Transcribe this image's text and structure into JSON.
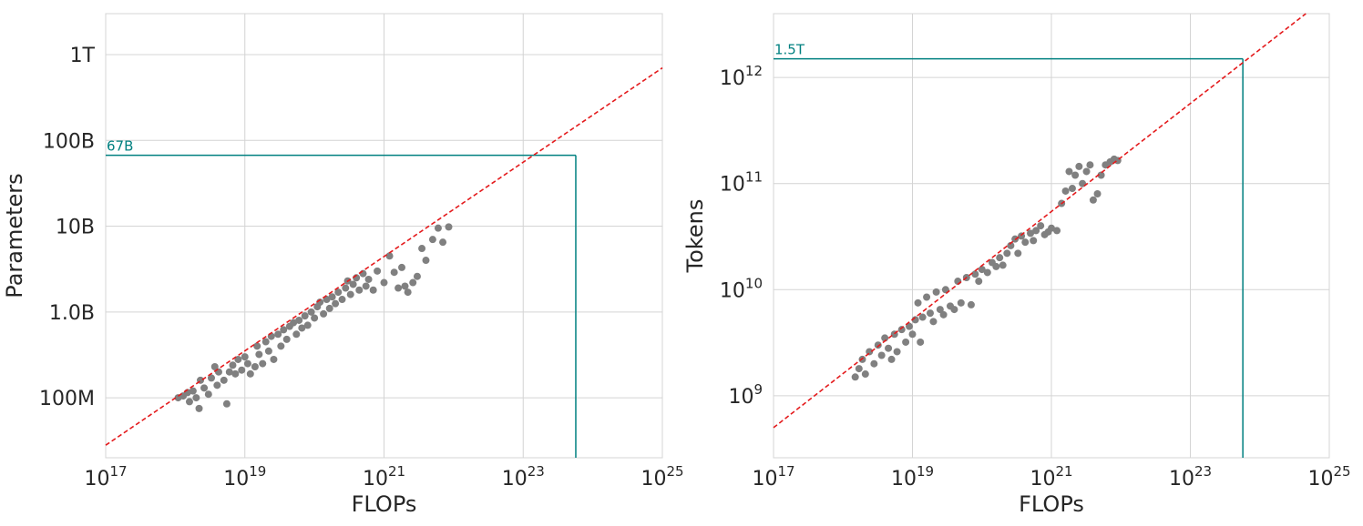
{
  "colors": {
    "points": "#808080",
    "fit": "#e41a1c",
    "marker": "#008080",
    "grid": "#d4d4d4",
    "text": "#262626"
  },
  "chart_data": [
    {
      "type": "scatter",
      "xlabel": "FLOPs",
      "ylabel": "Parameters",
      "xscale": "log",
      "yscale": "log",
      "xlim": [
        1e+17,
        1e+25
      ],
      "ylim": [
        20000000.0,
        3000000000000.0
      ],
      "x_ticks": [
        {
          "value": 1e+17,
          "base": "10",
          "exp": "17"
        },
        {
          "value": 1e+19,
          "base": "10",
          "exp": "19"
        },
        {
          "value": 1e+21,
          "base": "10",
          "exp": "21"
        },
        {
          "value": 1e+23,
          "base": "10",
          "exp": "23"
        },
        {
          "value": 1e+25,
          "base": "10",
          "exp": "25"
        }
      ],
      "y_ticks": [
        {
          "value": 100000000.0,
          "label": "100M"
        },
        {
          "value": 1000000000.0,
          "label": "1.0B"
        },
        {
          "value": 10000000000.0,
          "label": "10B"
        },
        {
          "value": 100000000000.0,
          "label": "100B"
        },
        {
          "value": 1000000000000.0,
          "label": "1T"
        }
      ],
      "fit_line": {
        "x": [
          1e+17,
          1e+25
        ],
        "y": [
          28000000.0,
          700000000000.0
        ],
        "style": "dashed"
      },
      "annotation": {
        "x": 5.7e+23,
        "y": 67000000000.0,
        "label": "67B"
      },
      "points_x_range": [
        1e+18,
        1e+22
      ],
      "points_y_range": [
        75000000.0,
        10000000000.0
      ],
      "points": [
        [
          1.1e+18,
          100000000.0
        ],
        [
          1.3e+18,
          105000000.0
        ],
        [
          1.5e+18,
          115000000.0
        ],
        [
          1.6e+18,
          90000000.0
        ],
        [
          1.8e+18,
          120000000.0
        ],
        [
          2e+18,
          100000000.0
        ],
        [
          2.2e+18,
          75000000.0
        ],
        [
          2.3e+18,
          160000000.0
        ],
        [
          2.6e+18,
          130000000.0
        ],
        [
          3e+18,
          110000000.0
        ],
        [
          3.3e+18,
          170000000.0
        ],
        [
          3.7e+18,
          230000000.0
        ],
        [
          4e+18,
          140000000.0
        ],
        [
          4.2e+18,
          200000000.0
        ],
        [
          5e+18,
          160000000.0
        ],
        [
          5.5e+18,
          85000000.0
        ],
        [
          6e+18,
          200000000.0
        ],
        [
          6.7e+18,
          240000000.0
        ],
        [
          7.3e+18,
          190000000.0
        ],
        [
          8e+18,
          280000000.0
        ],
        [
          9e+18,
          210000000.0
        ],
        [
          1e+19,
          300000000.0
        ],
        [
          1.1e+19,
          250000000.0
        ],
        [
          1.2e+19,
          190000000.0
        ],
        [
          1.4e+19,
          230000000.0
        ],
        [
          1.5e+19,
          400000000.0
        ],
        [
          1.6e+19,
          320000000.0
        ],
        [
          1.8e+19,
          250000000.0
        ],
        [
          2e+19,
          450000000.0
        ],
        [
          2.2e+19,
          350000000.0
        ],
        [
          2.4e+19,
          520000000.0
        ],
        [
          2.6e+19,
          280000000.0
        ],
        [
          3e+19,
          550000000.0
        ],
        [
          3.3e+19,
          400000000.0
        ],
        [
          3.6e+19,
          620000000.0
        ],
        [
          4e+19,
          480000000.0
        ],
        [
          4.4e+19,
          680000000.0
        ],
        [
          5e+19,
          750000000.0
        ],
        [
          5.5e+19,
          550000000.0
        ],
        [
          6e+19,
          800000000.0
        ],
        [
          6.6e+19,
          650000000.0
        ],
        [
          7.3e+19,
          900000000.0
        ],
        [
          8e+19,
          700000000.0
        ],
        [
          9e+19,
          1000000000.0
        ],
        [
          1e+20,
          850000000.0
        ],
        [
          1.1e+20,
          1150000000.0
        ],
        [
          1.2e+20,
          1300000000.0
        ],
        [
          1.35e+20,
          950000000.0
        ],
        [
          1.5e+20,
          1400000000.0
        ],
        [
          1.65e+20,
          1100000000.0
        ],
        [
          1.8e+20,
          1500000000.0
        ],
        [
          2e+20,
          1250000000.0
        ],
        [
          2.2e+20,
          1700000000.0
        ],
        [
          2.5e+20,
          1400000000.0
        ],
        [
          2.8e+20,
          1900000000.0
        ],
        [
          3e+20,
          2300000000.0
        ],
        [
          3.3e+20,
          1600000000.0
        ],
        [
          3.6e+20,
          2100000000.0
        ],
        [
          4e+20,
          2500000000.0
        ],
        [
          4.4e+20,
          1800000000.0
        ],
        [
          5e+20,
          2800000000.0
        ],
        [
          5.5e+20,
          2000000000.0
        ],
        [
          6e+20,
          2400000000.0
        ],
        [
          7e+20,
          1800000000.0
        ],
        [
          8e+20,
          3000000000.0
        ],
        [
          1e+21,
          2200000000.0
        ],
        [
          1.2e+21,
          4500000000.0
        ],
        [
          1.4e+21,
          2900000000.0
        ],
        [
          1.6e+21,
          1900000000.0
        ],
        [
          1.8e+21,
          3300000000.0
        ],
        [
          2e+21,
          2000000000.0
        ],
        [
          2.2e+21,
          1700000000.0
        ],
        [
          2.6e+21,
          2200000000.0
        ],
        [
          3e+21,
          2600000000.0
        ],
        [
          3.5e+21,
          5500000000.0
        ],
        [
          4e+21,
          4000000000.0
        ],
        [
          5e+21,
          7000000000.0
        ],
        [
          6e+21,
          9500000000.0
        ],
        [
          7e+21,
          6500000000.0
        ],
        [
          8.5e+21,
          9800000000.0
        ]
      ]
    },
    {
      "type": "scatter",
      "xlabel": "FLOPs",
      "ylabel": "Tokens",
      "xscale": "log",
      "yscale": "log",
      "xlim": [
        1e+17,
        1e+25
      ],
      "ylim": [
        260000000.0,
        4000000000000.0
      ],
      "x_ticks": [
        {
          "value": 1e+17,
          "base": "10",
          "exp": "17"
        },
        {
          "value": 1e+19,
          "base": "10",
          "exp": "19"
        },
        {
          "value": 1e+21,
          "base": "10",
          "exp": "21"
        },
        {
          "value": 1e+23,
          "base": "10",
          "exp": "23"
        },
        {
          "value": 1e+25,
          "base": "10",
          "exp": "25"
        }
      ],
      "y_ticks": [
        {
          "value": 1000000000.0,
          "base": "10",
          "exp": "9"
        },
        {
          "value": 10000000000.0,
          "base": "10",
          "exp": "10"
        },
        {
          "value": 100000000000.0,
          "base": "10",
          "exp": "11"
        },
        {
          "value": 1000000000000.0,
          "base": "10",
          "exp": "12"
        }
      ],
      "fit_line": {
        "x": [
          1e+17,
          4.6e+24
        ],
        "y": [
          500000000.0,
          4000000000000.0
        ],
        "style": "dashed"
      },
      "annotation": {
        "x": 5.7e+23,
        "y": 1500000000000.0,
        "label": "1.5T"
      },
      "points_x_range": [
        1e+18,
        1e+22
      ],
      "points_y_range": [
        1400000000.0,
        170000000000.0
      ],
      "points": [
        [
          1.5e+18,
          1500000000.0
        ],
        [
          1.7e+18,
          1800000000.0
        ],
        [
          1.9e+18,
          2200000000.0
        ],
        [
          2.1e+18,
          1600000000.0
        ],
        [
          2.4e+18,
          2600000000.0
        ],
        [
          2.8e+18,
          2000000000.0
        ],
        [
          3.2e+18,
          3000000000.0
        ],
        [
          3.6e+18,
          2400000000.0
        ],
        [
          4e+18,
          3500000000.0
        ],
        [
          4.5e+18,
          2800000000.0
        ],
        [
          5e+18,
          2200000000.0
        ],
        [
          5.5e+18,
          3800000000.0
        ],
        [
          6e+18,
          2600000000.0
        ],
        [
          7e+18,
          4200000000.0
        ],
        [
          8e+18,
          3200000000.0
        ],
        [
          9e+18,
          4500000000.0
        ],
        [
          1e+19,
          3800000000.0
        ],
        [
          1.1e+19,
          5200000000.0
        ],
        [
          1.2e+19,
          7500000000.0
        ],
        [
          1.3e+19,
          3200000000.0
        ],
        [
          1.4e+19,
          5500000000.0
        ],
        [
          1.6e+19,
          8500000000.0
        ],
        [
          1.8e+19,
          6000000000.0
        ],
        [
          2e+19,
          5000000000.0
        ],
        [
          2.2e+19,
          9500000000.0
        ],
        [
          2.5e+19,
          6500000000.0
        ],
        [
          2.8e+19,
          5800000000.0
        ],
        [
          3e+19,
          10000000000.0
        ],
        [
          3.5e+19,
          7000000000.0
        ],
        [
          4e+19,
          6500000000.0
        ],
        [
          4.5e+19,
          12000000000.0
        ],
        [
          5e+19,
          7500000000.0
        ],
        [
          6e+19,
          13000000000.0
        ],
        [
          7e+19,
          7200000000.0
        ],
        [
          8e+19,
          14000000000.0
        ],
        [
          9e+19,
          12000000000.0
        ],
        [
          1e+20,
          15500000000.0
        ],
        [
          1.2e+20,
          14500000000.0
        ],
        [
          1.4e+20,
          18000000000.0
        ],
        [
          1.6e+20,
          16500000000.0
        ],
        [
          1.8e+20,
          20000000000.0
        ],
        [
          2e+20,
          17000000000.0
        ],
        [
          2.3e+20,
          22000000000.0
        ],
        [
          2.6e+20,
          26000000000.0
        ],
        [
          3e+20,
          30000000000.0
        ],
        [
          3.3e+20,
          22000000000.0
        ],
        [
          3.7e+20,
          32000000000.0
        ],
        [
          4.2e+20,
          28000000000.0
        ],
        [
          5e+20,
          34000000000.0
        ],
        [
          5.5e+20,
          29000000000.0
        ],
        [
          6e+20,
          36000000000.0
        ],
        [
          7e+20,
          40000000000.0
        ],
        [
          8e+20,
          33000000000.0
        ],
        [
          9e+20,
          35000000000.0
        ],
        [
          1e+21,
          38000000000.0
        ],
        [
          1.2e+21,
          36000000000.0
        ],
        [
          1.4e+21,
          65000000000.0
        ],
        [
          1.6e+21,
          85000000000.0
        ],
        [
          1.8e+21,
          130000000000.0
        ],
        [
          2e+21,
          90000000000.0
        ],
        [
          2.2e+21,
          120000000000.0
        ],
        [
          2.5e+21,
          145000000000.0
        ],
        [
          2.8e+21,
          100000000000.0
        ],
        [
          3.2e+21,
          130000000000.0
        ],
        [
          3.6e+21,
          150000000000.0
        ],
        [
          4e+21,
          70000000000.0
        ],
        [
          4.6e+21,
          80000000000.0
        ],
        [
          5.2e+21,
          120000000000.0
        ],
        [
          6e+21,
          150000000000.0
        ],
        [
          7e+21,
          160000000000.0
        ],
        [
          8e+21,
          170000000000.0
        ],
        [
          9e+21,
          165000000000.0
        ]
      ]
    }
  ]
}
